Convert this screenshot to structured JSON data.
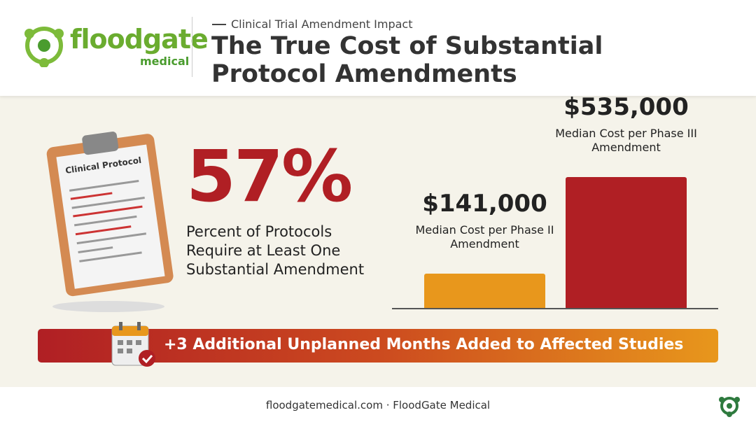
{
  "header": {
    "brand": "floodgate",
    "brand_sub": "medical",
    "kicker": "Clinical Trial Amendment Impact",
    "title": "The True Cost of Substantial Protocol Amendments"
  },
  "stat": {
    "value": 57,
    "value_label": "57%",
    "caption": "Percent of Protocols Require at Least One Substantial Amendment",
    "clipboard_label": "Clinical Protocol"
  },
  "chart_data": {
    "type": "bar",
    "categories": [
      "Median Cost per Phase II Amendment",
      "Median Cost per Phase III Amendment"
    ],
    "values": [
      141000,
      535000
    ],
    "value_labels": [
      "$141,000",
      "$535,000"
    ],
    "colors": [
      "#e8971c",
      "#b01f24"
    ]
  },
  "banner": {
    "text": "+3 Additional Unplanned Months Added to Affected Studies"
  },
  "footer": {
    "text": "floodgatemedical.com · FloodGate Medical"
  }
}
